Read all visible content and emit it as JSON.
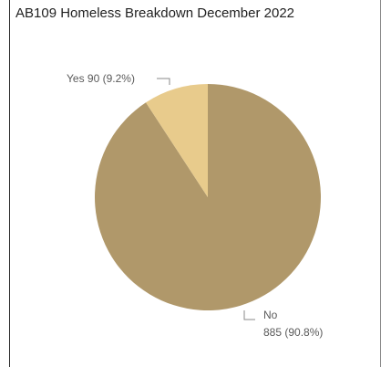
{
  "chart_data": {
    "type": "pie",
    "title": "AB109 Homeless Breakdown December 2022",
    "slices": [
      {
        "label": "No",
        "value": 885,
        "percent": "90.8%",
        "color": "#b0986a"
      },
      {
        "label": "Yes",
        "value": 90,
        "percent": "9.2%",
        "color": "#e8cb8c"
      }
    ],
    "legend": "none",
    "start_angle_deg": 0,
    "direction": "clockwise"
  },
  "labels": {
    "yes_text": "Yes 90 (9.2%)",
    "no_name": "No",
    "no_value": "885 (90.8%)"
  },
  "colors": {
    "leader_line": "#8a8a8a",
    "label_text": "#5a5a5a"
  }
}
